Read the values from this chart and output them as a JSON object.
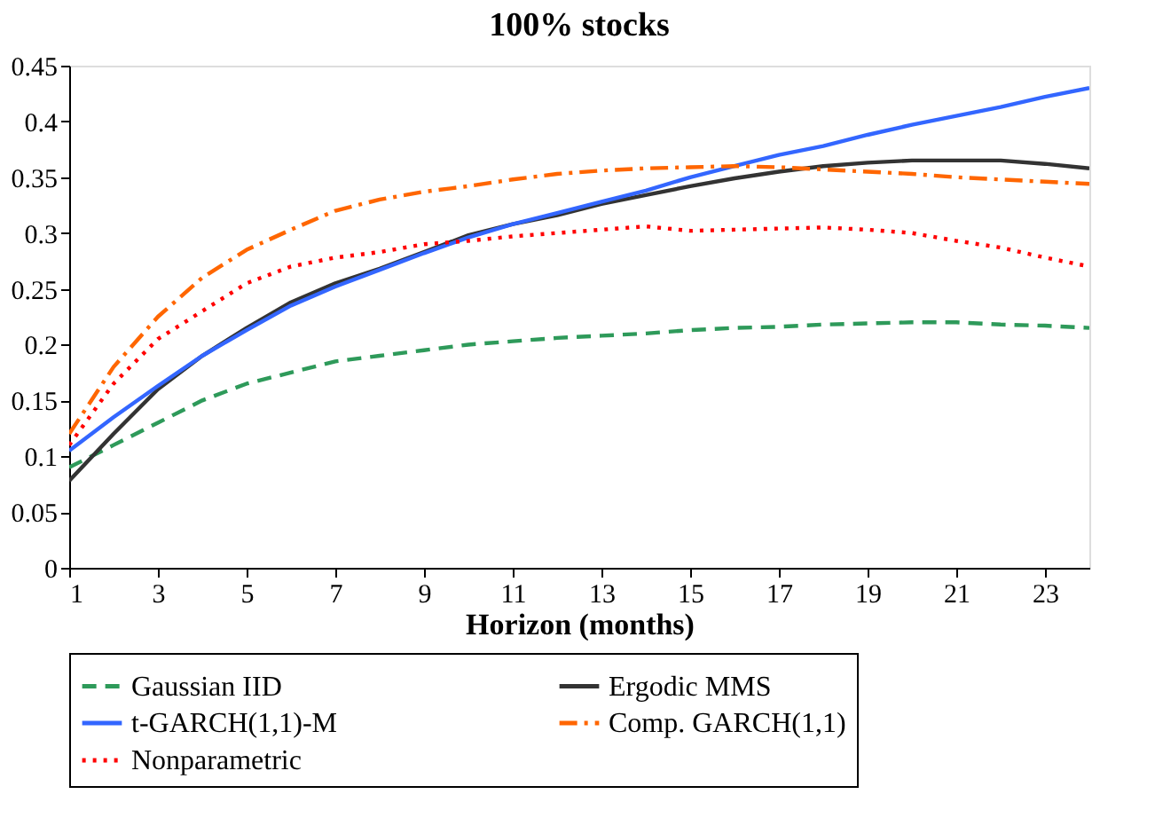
{
  "chart_data": {
    "type": "line",
    "title": "100% stocks",
    "xlabel": "Horizon (months)",
    "x": [
      1,
      2,
      3,
      4,
      5,
      6,
      7,
      8,
      9,
      10,
      11,
      12,
      13,
      14,
      15,
      16,
      17,
      18,
      19,
      20,
      21,
      22,
      23,
      24
    ],
    "xlim": [
      1,
      24
    ],
    "xticks": [
      1,
      3,
      5,
      7,
      9,
      11,
      13,
      15,
      17,
      19,
      21,
      23
    ],
    "ylim": [
      0,
      0.45
    ],
    "yticks": [
      0,
      0.05,
      0.1,
      0.15,
      0.2,
      0.25,
      0.3,
      0.35,
      0.4,
      0.45
    ],
    "grid": false,
    "legend": "bottom",
    "marker": "none",
    "series": [
      {
        "name": "Gaussian IID",
        "color": "#2e9a5a",
        "line_style": "dashed",
        "values": [
          0.09,
          0.11,
          0.13,
          0.15,
          0.165,
          0.175,
          0.185,
          0.19,
          0.195,
          0.2,
          0.203,
          0.206,
          0.208,
          0.21,
          0.213,
          0.215,
          0.216,
          0.218,
          0.219,
          0.22,
          0.22,
          0.218,
          0.217,
          0.215
        ]
      },
      {
        "name": "Ergodic MMS",
        "color": "#333333",
        "line_style": "solid",
        "values": [
          0.078,
          0.12,
          0.16,
          0.19,
          0.215,
          0.238,
          0.255,
          0.268,
          0.283,
          0.298,
          0.308,
          0.316,
          0.326,
          0.334,
          0.342,
          0.349,
          0.355,
          0.36,
          0.363,
          0.365,
          0.365,
          0.365,
          0.362,
          0.358
        ]
      },
      {
        "name": "t-GARCH(1,1)-M",
        "color": "#3366ff",
        "line_style": "solid",
        "values": [
          0.105,
          0.135,
          0.163,
          0.19,
          0.213,
          0.235,
          0.252,
          0.267,
          0.282,
          0.296,
          0.308,
          0.318,
          0.328,
          0.338,
          0.35,
          0.36,
          0.37,
          0.378,
          0.388,
          0.397,
          0.405,
          0.413,
          0.422,
          0.43
        ]
      },
      {
        "name": "Comp. GARCH(1,1)",
        "color": "#ff6600",
        "line_style": "dashdot",
        "values": [
          0.12,
          0.18,
          0.225,
          0.26,
          0.285,
          0.303,
          0.32,
          0.33,
          0.337,
          0.342,
          0.348,
          0.353,
          0.356,
          0.358,
          0.359,
          0.36,
          0.359,
          0.357,
          0.355,
          0.353,
          0.35,
          0.348,
          0.346,
          0.344
        ]
      },
      {
        "name": "Nonparametric",
        "color": "#ff0000",
        "line_style": "dotted",
        "values": [
          0.11,
          0.165,
          0.205,
          0.23,
          0.255,
          0.27,
          0.278,
          0.283,
          0.29,
          0.293,
          0.297,
          0.3,
          0.303,
          0.306,
          0.302,
          0.303,
          0.304,
          0.305,
          0.303,
          0.3,
          0.293,
          0.287,
          0.278,
          0.27
        ]
      }
    ]
  }
}
